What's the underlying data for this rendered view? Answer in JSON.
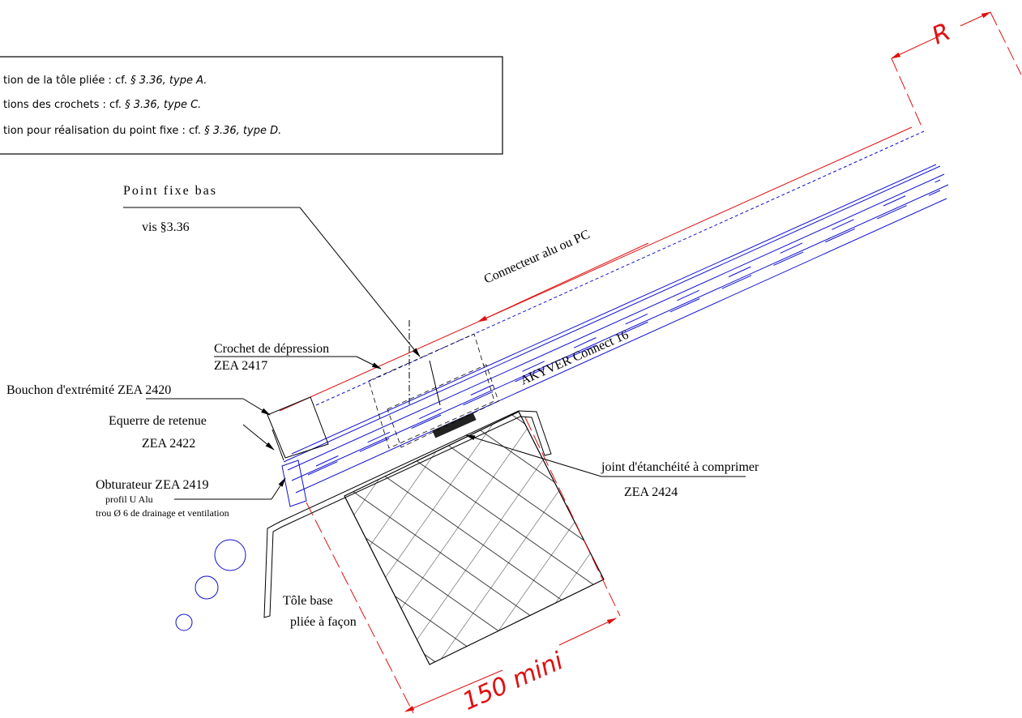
{
  "notes": [
    {
      "text": "tion de la tôle pliée : cf. ",
      "ref": "§ 3.36, type A."
    },
    {
      "text": "tions des crochets : cf. ",
      "ref": "§ 3.36, type C."
    },
    {
      "text": "tion pour réalisation du point fixe : cf. ",
      "ref": "§ 3.36, type D."
    }
  ],
  "dimensions": {
    "radius": "R",
    "width": "150 mini"
  },
  "labels": {
    "point_fixe": "Point fixe bas",
    "vis": "vis §3.36",
    "connecteur": "Connecteur alu ou PC",
    "panel": "AKYVER Connect 16",
    "crochet": "Crochet de dépression",
    "crochet_ref": "ZEA 2417",
    "bouchon": "Bouchon d'extrémité ZEA 2420",
    "equerre": "Equerre de retenue",
    "equerre_ref": "ZEA 2422",
    "obturateur": "Obturateur ZEA 2419",
    "profil": "profil U Alu",
    "trou": "trou Ø 6 de drainage et ventilation",
    "joint": "joint d'étanchéité à comprimer",
    "joint_ref": "ZEA 2424",
    "tole": "Tôle base",
    "tole2": "pliée à façon"
  }
}
